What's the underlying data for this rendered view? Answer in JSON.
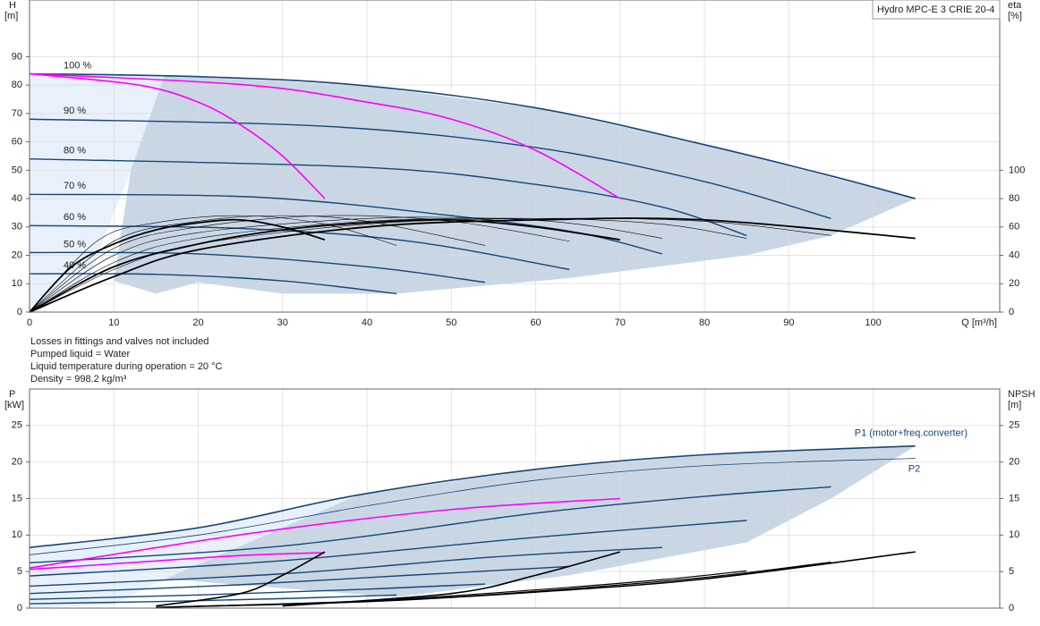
{
  "notes": [
    "Losses in fittings and valves not included",
    "Pumped liquid = Water",
    "Liquid temperature during operation = 20 °C",
    "Density = 998.2 kg/m³"
  ],
  "chart_data": [
    {
      "type": "line",
      "title": "Hydro MPC-E 3 CRIE 20-4",
      "ylabel": "H",
      "yunit": "[m]",
      "y2label": "eta",
      "y2unit": "[%]",
      "xlabel": "Q [m³/h]",
      "xlim": [
        0,
        115
      ],
      "xticks": [
        0,
        10,
        20,
        30,
        40,
        50,
        60,
        70,
        80,
        90,
        100
      ],
      "ylim": [
        0,
        110
      ],
      "yticks": [
        0,
        10,
        20,
        30,
        40,
        50,
        60,
        70,
        80,
        90
      ],
      "y2lim": [
        0,
        220
      ],
      "y2ticks": [
        0,
        20,
        40,
        60,
        80,
        100
      ],
      "grid": true,
      "areas": [
        {
          "color": "#e8f1fb",
          "x": [
            0,
            16,
            12,
            7,
            0
          ],
          "values": [
            84,
            83.5,
            50,
            12,
            0
          ]
        },
        {
          "color": "#c9d7e5",
          "x": [
            16,
            39,
            60,
            80,
            105,
            95,
            85,
            64,
            43.5,
            30,
            20,
            15,
            10,
            12
          ],
          "values": [
            83.5,
            80,
            72,
            59,
            40,
            27,
            20,
            12,
            6.5,
            6.5,
            10.5,
            6.5,
            11,
            50
          ]
        }
      ],
      "series": [
        {
          "name": "100 %",
          "color": "#16467a",
          "width": 1.6,
          "x": [
            0,
            20,
            39,
            60,
            80,
            95,
            105
          ],
          "values": [
            84,
            83,
            80,
            72,
            59,
            48,
            40
          ]
        },
        {
          "name": "90 %",
          "color": "#16467a",
          "width": 1.4,
          "x": [
            0,
            35,
            60,
            80,
            95
          ],
          "values": [
            68,
            65.5,
            58,
            46,
            33
          ]
        },
        {
          "name": "80 %",
          "color": "#16467a",
          "width": 1.4,
          "x": [
            0,
            40,
            60,
            75,
            85
          ],
          "values": [
            54,
            51,
            45,
            37,
            27
          ]
        },
        {
          "name": "70 %",
          "color": "#16467a",
          "width": 1.4,
          "x": [
            0,
            27,
            50,
            65,
            75
          ],
          "values": [
            41.5,
            40.5,
            34,
            28,
            20.5
          ]
        },
        {
          "name": "60 %",
          "color": "#16467a",
          "width": 1.4,
          "x": [
            0,
            25,
            45,
            64
          ],
          "values": [
            30.5,
            29.5,
            25,
            15
          ]
        },
        {
          "name": "50 %",
          "color": "#16467a",
          "width": 1.4,
          "x": [
            0,
            20,
            40,
            54
          ],
          "values": [
            21,
            20.5,
            16,
            10.5
          ]
        },
        {
          "name": "40 %",
          "color": "#16467a",
          "width": 1.4,
          "x": [
            0,
            15,
            30,
            43.5
          ],
          "values": [
            13.5,
            13.3,
            11,
            6.5
          ]
        },
        {
          "color": "#ff00ff",
          "width": 1.6,
          "x": [
            0,
            13,
            20,
            25,
            30,
            35
          ],
          "values": [
            84,
            80,
            74,
            66,
            55,
            40
          ]
        },
        {
          "color": "#ff00ff",
          "width": 1.6,
          "x": [
            0,
            26,
            40,
            50,
            60,
            70
          ],
          "values": [
            84,
            80,
            74,
            68,
            57,
            40
          ]
        },
        {
          "color": "#000000",
          "width": 1.8,
          "axis": "y2",
          "x": [
            0,
            5,
            10,
            15,
            20,
            25,
            30,
            35
          ],
          "values": [
            0,
            32,
            48,
            58,
            63,
            65,
            60,
            51
          ]
        },
        {
          "color": "#000000",
          "width": 1.8,
          "axis": "y2",
          "x": [
            0,
            10,
            20,
            30,
            40,
            50,
            60,
            70
          ],
          "values": [
            0,
            32,
            48,
            58,
            63,
            65,
            60,
            51
          ]
        },
        {
          "color": "#000000",
          "width": 1.8,
          "axis": "y2",
          "x": [
            0,
            10,
            20,
            40,
            60,
            80,
            105
          ],
          "values": [
            0,
            25,
            44,
            60,
            65,
            65,
            52
          ]
        },
        {
          "color": "#000000",
          "width": 0.6,
          "axis": "y2",
          "x": [
            0,
            10,
            20,
            40,
            60,
            80,
            95
          ],
          "values": [
            0,
            30,
            48,
            62,
            66,
            64,
            54
          ]
        },
        {
          "color": "#000000",
          "width": 0.6,
          "axis": "y2",
          "x": [
            0,
            10,
            20,
            40,
            60,
            75,
            85
          ],
          "values": [
            0,
            35,
            52,
            64,
            66,
            62,
            52
          ]
        },
        {
          "color": "#000000",
          "width": 0.6,
          "axis": "y2",
          "x": [
            0,
            10,
            20,
            40,
            55,
            65,
            75
          ],
          "values": [
            0,
            40,
            56,
            66,
            66,
            62,
            52
          ]
        },
        {
          "color": "#000000",
          "width": 0.6,
          "axis": "y2",
          "x": [
            0,
            10,
            20,
            35,
            50,
            64
          ],
          "values": [
            0,
            45,
            60,
            68,
            64,
            50
          ]
        },
        {
          "color": "#000000",
          "width": 0.6,
          "axis": "y2",
          "x": [
            0,
            10,
            20,
            30,
            40,
            54
          ],
          "values": [
            0,
            50,
            64,
            68,
            64,
            47
          ]
        },
        {
          "color": "#000000",
          "width": 0.6,
          "axis": "y2",
          "x": [
            0,
            8,
            15,
            25,
            35,
            43.5
          ],
          "values": [
            0,
            50,
            63,
            68,
            62,
            47
          ]
        }
      ]
    },
    {
      "type": "line",
      "ylabel": "P",
      "yunit": "[kW]",
      "y2label": "NPSH",
      "y2unit": "[m]",
      "xlim": [
        0,
        115
      ],
      "ylim": [
        0,
        30
      ],
      "yticks": [
        0,
        5,
        10,
        15,
        20,
        25
      ],
      "y2lim": [
        0,
        30
      ],
      "y2ticks": [
        0,
        5,
        10,
        15,
        20,
        25
      ],
      "grid": true,
      "areas": [
        {
          "color": "#e8f1fb",
          "x": [
            0,
            20,
            39,
            16,
            10,
            0
          ],
          "values": [
            8.3,
            11,
            15.5,
            4,
            0.5,
            0
          ]
        },
        {
          "color": "#c9d7e5",
          "x": [
            39,
            60,
            80,
            105,
            95,
            85,
            64,
            43.5,
            16
          ],
          "values": [
            15.5,
            19,
            21,
            22.2,
            15,
            9,
            4.5,
            1.5,
            4
          ]
        }
      ],
      "series": [
        {
          "name": "P1 (motor+freq.converter)",
          "color": "#16467a",
          "width": 1.6,
          "x": [
            0,
            20,
            39,
            60,
            80,
            105
          ],
          "values": [
            8.3,
            11,
            15.5,
            19,
            21,
            22.2
          ]
        },
        {
          "name": "P2",
          "color": "#16467a",
          "width": 0.8,
          "x": [
            0,
            20,
            40,
            60,
            80,
            105
          ],
          "values": [
            7.3,
            10,
            14,
            17.5,
            19.5,
            20.5
          ]
        },
        {
          "color": "#16467a",
          "width": 1.4,
          "x": [
            0,
            30,
            60,
            80,
            95
          ],
          "values": [
            6.2,
            8.5,
            13,
            15.3,
            16.6
          ]
        },
        {
          "color": "#16467a",
          "width": 1.4,
          "x": [
            0,
            30,
            60,
            85
          ],
          "values": [
            4.4,
            6.5,
            9.7,
            12
          ]
        },
        {
          "color": "#16467a",
          "width": 1.4,
          "x": [
            0,
            30,
            55,
            75
          ],
          "values": [
            3,
            4.7,
            7,
            8.3
          ]
        },
        {
          "color": "#16467a",
          "width": 1.4,
          "x": [
            0,
            25,
            45,
            64
          ],
          "values": [
            2,
            3.2,
            4.5,
            5.7
          ]
        },
        {
          "color": "#16467a",
          "width": 1.4,
          "x": [
            0,
            20,
            40,
            54
          ],
          "values": [
            1.2,
            1.8,
            2.6,
            3.3
          ]
        },
        {
          "color": "#16467a",
          "width": 1.4,
          "x": [
            0,
            15,
            30,
            43.5
          ],
          "values": [
            0.6,
            0.9,
            1.3,
            1.8
          ]
        },
        {
          "color": "#ff00ff",
          "width": 1.6,
          "x": [
            0,
            13,
            25,
            35
          ],
          "values": [
            5.3,
            6.3,
            7.2,
            7.6
          ]
        },
        {
          "color": "#ff00ff",
          "width": 1.6,
          "x": [
            0,
            26,
            50,
            70
          ],
          "values": [
            5.5,
            10.2,
            13.5,
            15
          ]
        },
        {
          "color": "#000000",
          "width": 1.6,
          "axis": "y2",
          "x": [
            15,
            25,
            30,
            35
          ],
          "values": [
            0.3,
            2,
            4.5,
            7.7
          ]
        },
        {
          "color": "#000000",
          "width": 1.6,
          "axis": "y2",
          "x": [
            30,
            50,
            60,
            70
          ],
          "values": [
            0.3,
            2,
            4.5,
            7.7
          ]
        },
        {
          "color": "#000000",
          "width": 1.6,
          "axis": "y2",
          "x": [
            15,
            40,
            60,
            80,
            105
          ],
          "values": [
            0.1,
            0.9,
            2.2,
            4,
            7.7
          ]
        },
        {
          "color": "#000000",
          "width": 1.2,
          "axis": "y2",
          "x": [
            15,
            40,
            60,
            80,
            95
          ],
          "values": [
            0.1,
            0.9,
            2.3,
            4.2,
            6.3
          ]
        },
        {
          "color": "#000000",
          "width": 1.2,
          "axis": "y2",
          "x": [
            15,
            40,
            60,
            75,
            85
          ],
          "values": [
            0.1,
            1,
            2.5,
            3.9,
            5.1
          ]
        }
      ]
    }
  ]
}
